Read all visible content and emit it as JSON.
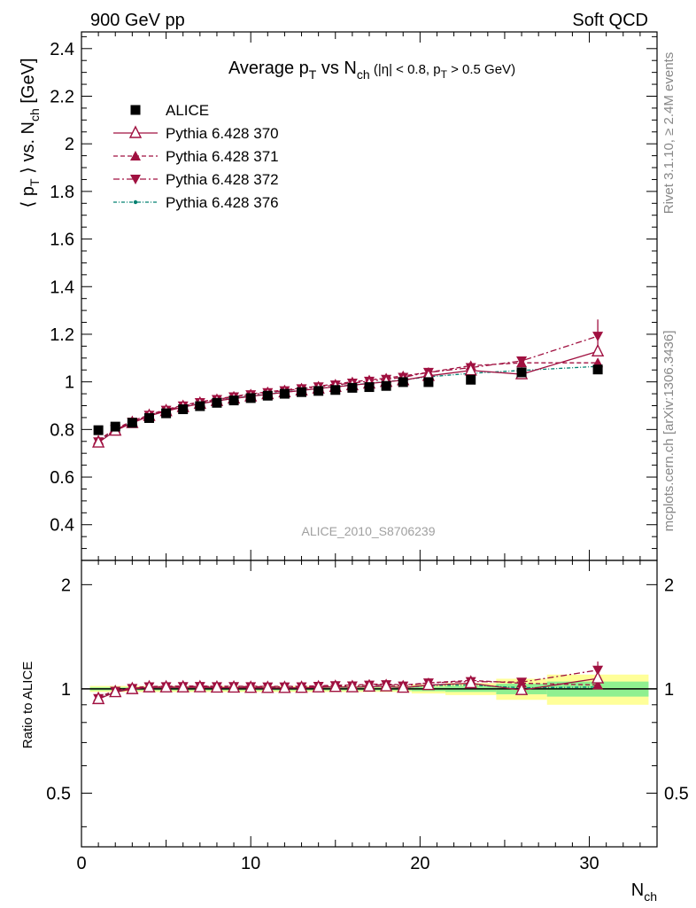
{
  "header": {
    "left": "900 GeV pp",
    "right": "Soft QCD"
  },
  "side_labels": {
    "rivet": "Rivet 3.1.10, ≥ 2.4M events",
    "mcplots": "mcplots.cern.ch [arXiv:1306.3436]"
  },
  "watermark": "ALICE_2010_S8706239",
  "colors": {
    "alice": "#000000",
    "pythia": "#a01040",
    "pythia376": "#008070",
    "band_inner": "#90f090",
    "band_outer": "#ffff99"
  },
  "chart_data": [
    {
      "type": "scatter",
      "panel": "main",
      "title": {
        "base": "Average p",
        "sub1": "T",
        "mid": " vs N",
        "sub2": "ch",
        "cond_a": " (|η| < 0.8, p",
        "cond_sub": "T",
        "cond_b": " > 0.5 GeV)"
      },
      "ylabel": {
        "part1": "⟨ p",
        "sub1": "T",
        "part2": " ⟩ vs. N",
        "sub2": "ch",
        "part3": " [GeV]"
      },
      "xlim": [
        0,
        34
      ],
      "ylim": [
        0.25,
        2.47
      ],
      "yticks": [
        0.4,
        0.6,
        0.8,
        1,
        1.2,
        1.4,
        1.6,
        1.8,
        2,
        2.2,
        2.4
      ],
      "ytick_labels": [
        "0.4",
        "0.6",
        "0.8",
        "1",
        "1.2",
        "1.4",
        "1.6",
        "1.8",
        "2",
        "2.2",
        "2.4"
      ],
      "legend_position": "top-left",
      "series": [
        {
          "name": "ALICE",
          "marker": "square",
          "line": "none",
          "x": [
            1,
            2,
            3,
            4,
            5,
            6,
            7,
            8,
            9,
            10,
            11,
            12,
            13,
            14,
            15,
            16,
            17,
            18,
            19,
            20.5,
            23,
            26,
            30.5
          ],
          "y": [
            0.797,
            0.812,
            0.828,
            0.848,
            0.868,
            0.885,
            0.898,
            0.912,
            0.922,
            0.932,
            0.942,
            0.95,
            0.957,
            0.962,
            0.966,
            0.975,
            0.978,
            0.983,
            0.999,
            0.999,
            1.009,
            1.04,
            1.052
          ]
        },
        {
          "name": "Pythia 6.428 370",
          "marker": "triangle-up-open",
          "line": "solid",
          "x": [
            1,
            2,
            3,
            4,
            5,
            6,
            7,
            8,
            9,
            10,
            11,
            12,
            13,
            14,
            15,
            16,
            17,
            18,
            19,
            20.5,
            23,
            26,
            30.5
          ],
          "y": [
            0.745,
            0.795,
            0.827,
            0.857,
            0.877,
            0.894,
            0.908,
            0.92,
            0.93,
            0.939,
            0.948,
            0.956,
            0.964,
            0.972,
            0.979,
            0.986,
            0.993,
            1.0,
            1.007,
            1.025,
            1.048,
            1.032,
            1.128
          ]
        },
        {
          "name": "Pythia 6.428 371",
          "marker": "triangle-up",
          "line": "dashed",
          "x": [
            1,
            2,
            3,
            4,
            5,
            6,
            7,
            8,
            9,
            10,
            11,
            12,
            13,
            14,
            15,
            16,
            17,
            18,
            19,
            20.5,
            23,
            26,
            30.5
          ],
          "y": [
            0.755,
            0.803,
            0.835,
            0.862,
            0.884,
            0.902,
            0.916,
            0.928,
            0.939,
            0.949,
            0.958,
            0.966,
            0.974,
            0.982,
            0.991,
            1.0,
            1.008,
            1.016,
            1.025,
            1.04,
            1.068,
            1.08,
            1.08
          ]
        },
        {
          "name": "Pythia 6.428 372",
          "marker": "triangle-down",
          "line": "dashdot",
          "x": [
            1,
            2,
            3,
            4,
            5,
            6,
            7,
            8,
            9,
            10,
            11,
            12,
            13,
            14,
            15,
            16,
            17,
            18,
            19,
            20.5,
            23,
            26,
            30.5
          ],
          "y": [
            0.748,
            0.8,
            0.831,
            0.86,
            0.881,
            0.899,
            0.913,
            0.926,
            0.937,
            0.946,
            0.955,
            0.963,
            0.971,
            0.979,
            0.987,
            0.995,
            1.003,
            1.011,
            1.019,
            1.04,
            1.06,
            1.088,
            1.192
          ],
          "yerr_last": 0.07
        },
        {
          "name": "Pythia 6.428 376",
          "marker": "dot",
          "line": "dashdot-fine",
          "x": [
            1,
            2,
            3,
            4,
            5,
            6,
            7,
            8,
            9,
            10,
            11,
            12,
            13,
            14,
            15,
            16,
            17,
            18,
            19,
            20.5,
            23,
            26,
            30.5
          ],
          "y": [
            0.75,
            0.798,
            0.829,
            0.857,
            0.878,
            0.896,
            0.909,
            0.921,
            0.931,
            0.94,
            0.949,
            0.957,
            0.965,
            0.972,
            0.98,
            0.987,
            0.994,
            1.001,
            1.008,
            1.021,
            1.036,
            1.048,
            1.065
          ]
        }
      ]
    },
    {
      "type": "scatter",
      "panel": "ratio",
      "ylabel": "Ratio to ALICE",
      "xlabel": {
        "base": "N",
        "sub": "ch"
      },
      "xlim": [
        0,
        34
      ],
      "ylim": [
        0.35,
        2.35
      ],
      "log_y": true,
      "yticks": [
        0.5,
        1,
        2
      ],
      "ytick_labels": [
        "0.5",
        "1",
        "2"
      ],
      "xticks": [
        0,
        10,
        20,
        30
      ],
      "xtick_labels": [
        "0",
        "10",
        "20",
        "30"
      ],
      "bands": [
        {
          "x0": 0.5,
          "x1": 19.5,
          "inner": 0.01,
          "outer": 0.02
        },
        {
          "x0": 19.5,
          "x1": 21.5,
          "inner": 0.015,
          "outer": 0.03
        },
        {
          "x0": 21.5,
          "x1": 24.5,
          "inner": 0.02,
          "outer": 0.04
        },
        {
          "x0": 24.5,
          "x1": 27.5,
          "inner": 0.035,
          "outer": 0.07
        },
        {
          "x0": 27.5,
          "x1": 33.5,
          "inner": 0.05,
          "outer": 0.1
        }
      ]
    }
  ]
}
